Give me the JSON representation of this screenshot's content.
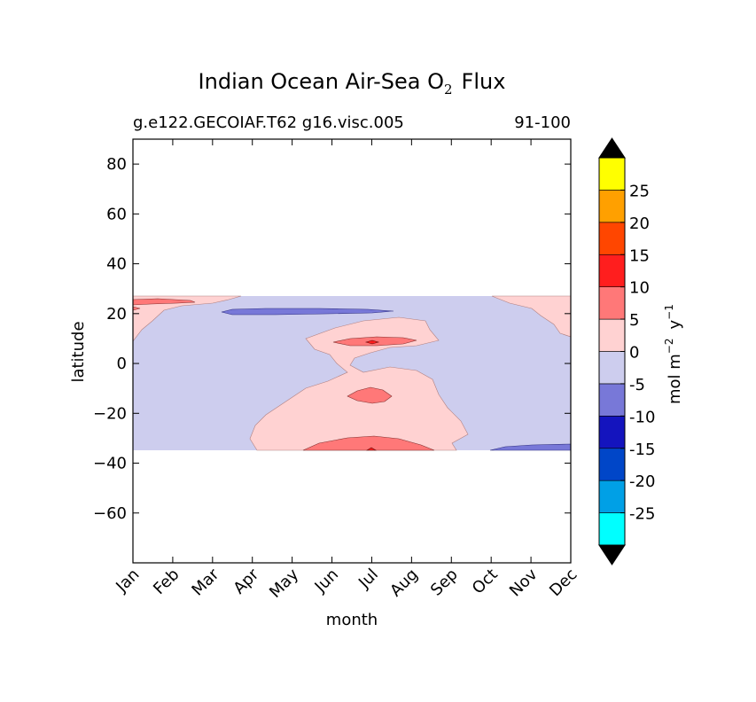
{
  "chart_data": {
    "type": "contour",
    "title_main": "Indian Ocean Air-Sea O",
    "title_sub": "2",
    "title_tail": "Flux",
    "subtitle_left": "g.e122.GECOIAF.T62 g16.visc.005",
    "subtitle_right": "91-100",
    "xlabel": "month",
    "ylabel": "latitude",
    "x_ticks": [
      "Jan",
      "Feb",
      "Mar",
      "Apr",
      "May",
      "Jun",
      "Jul",
      "Aug",
      "Sep",
      "Oct",
      "Nov",
      "Dec"
    ],
    "y_ticks": [
      -60,
      -40,
      -20,
      0,
      20,
      40,
      60,
      80
    ],
    "ylim": [
      -80,
      90
    ],
    "xlim": [
      0,
      11
    ],
    "data_lat_range": [
      -34,
      27
    ],
    "colorbar": {
      "label_parts": [
        "mol m",
        "−2",
        "y",
        "−1"
      ],
      "levels": [
        -30,
        -25,
        -20,
        -15,
        -10,
        -5,
        0,
        5,
        10,
        15,
        20,
        25,
        30
      ],
      "tick_labels": [
        "-25",
        "-20",
        "-15",
        "-10",
        "-5",
        "0",
        "5",
        "10",
        "15",
        "20",
        "25"
      ],
      "colors": [
        "#00ffff",
        "#00a0e6",
        "#0046c8",
        "#1414be",
        "#7878d8",
        "#cdcdee",
        "#ffd2d2",
        "#ff7878",
        "#ff1e1e",
        "#ff4600",
        "#ffa000",
        "#ffff00"
      ],
      "extend": "both",
      "extend_color": "#000000"
    },
    "regions": [
      {
        "name": "positive-0-5",
        "level": "0 to 5"
      },
      {
        "name": "positive-5-10",
        "level": "5 to 10"
      },
      {
        "name": "negative-5-0",
        "level": "-5 to 0"
      },
      {
        "name": "negative-10-5",
        "level": "-10 to -5"
      }
    ]
  }
}
